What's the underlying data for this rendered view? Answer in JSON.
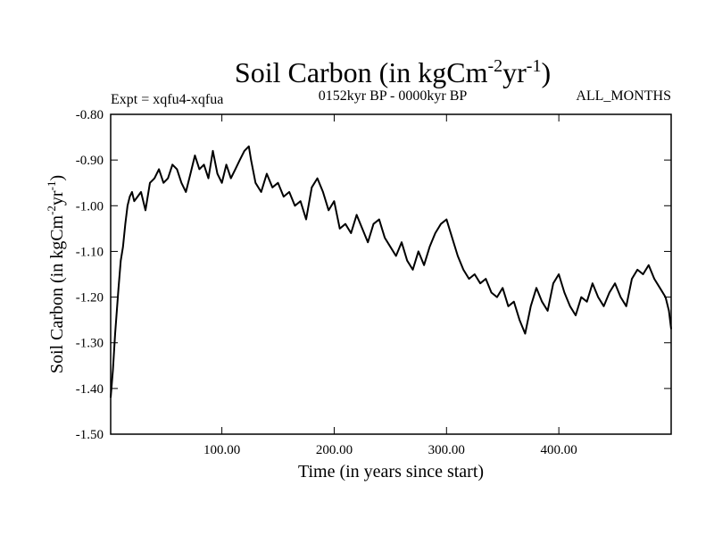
{
  "chart_data": {
    "type": "line",
    "title": {
      "main": "Soil Carbon (in kgCm",
      "sup1": "-2",
      "mid": "yr",
      "sup2": "-1",
      "end": ")"
    },
    "experiment": "Expt = xqfu4-xqfua",
    "period": "0152kyr BP - 0000kyr BP",
    "months": "ALL_MONTHS",
    "xlabel": "Time (in years since start)",
    "ylabel": {
      "main": "Soil Carbon (in kgCm",
      "sup1": "-2",
      "mid": "yr",
      "sup2": "-1",
      "end": ")"
    },
    "xlim": [
      1,
      500
    ],
    "ylim": [
      -1.5,
      -0.8
    ],
    "x_ticks": [
      100,
      200,
      300,
      400
    ],
    "x_tick_labels": [
      "100.00",
      "200.00",
      "300.00",
      "400.00"
    ],
    "y_ticks": [
      -0.8,
      -0.9,
      -1.0,
      -1.1,
      -1.2,
      -1.3,
      -1.4,
      -1.5
    ],
    "y_tick_labels": [
      "-0.80",
      "-0.90",
      "-1.00",
      "-1.10",
      "-1.20",
      "-1.30",
      "-1.40",
      "-1.50"
    ],
    "series": [
      {
        "name": "Soil Carbon",
        "color": "#000000",
        "x": [
          1,
          3,
          5,
          8,
          10,
          12,
          14,
          16,
          18,
          20,
          22,
          25,
          28,
          32,
          36,
          40,
          44,
          48,
          52,
          56,
          60,
          64,
          68,
          72,
          76,
          80,
          84,
          88,
          92,
          96,
          100,
          104,
          108,
          112,
          116,
          120,
          124,
          126,
          130,
          135,
          140,
          145,
          150,
          155,
          160,
          165,
          170,
          175,
          180,
          185,
          190,
          195,
          200,
          205,
          210,
          215,
          220,
          225,
          230,
          235,
          240,
          245,
          250,
          255,
          260,
          265,
          270,
          275,
          280,
          285,
          290,
          295,
          300,
          305,
          310,
          315,
          320,
          325,
          330,
          335,
          340,
          345,
          350,
          355,
          360,
          365,
          370,
          375,
          380,
          385,
          390,
          395,
          400,
          405,
          410,
          415,
          420,
          425,
          430,
          435,
          440,
          445,
          450,
          455,
          460,
          465,
          470,
          475,
          480,
          485,
          490,
          495,
          498,
          500
        ],
        "values": [
          -1.42,
          -1.36,
          -1.28,
          -1.18,
          -1.12,
          -1.09,
          -1.04,
          -1.0,
          -0.98,
          -0.97,
          -0.99,
          -0.98,
          -0.97,
          -1.01,
          -0.95,
          -0.94,
          -0.92,
          -0.95,
          -0.94,
          -0.91,
          -0.92,
          -0.95,
          -0.97,
          -0.93,
          -0.89,
          -0.92,
          -0.91,
          -0.94,
          -0.88,
          -0.93,
          -0.95,
          -0.91,
          -0.94,
          -0.92,
          -0.9,
          -0.88,
          -0.87,
          -0.9,
          -0.95,
          -0.97,
          -0.93,
          -0.96,
          -0.95,
          -0.98,
          -0.97,
          -1.0,
          -0.99,
          -1.03,
          -0.96,
          -0.94,
          -0.97,
          -1.01,
          -0.99,
          -1.05,
          -1.04,
          -1.06,
          -1.02,
          -1.05,
          -1.08,
          -1.04,
          -1.03,
          -1.07,
          -1.09,
          -1.11,
          -1.08,
          -1.12,
          -1.14,
          -1.1,
          -1.13,
          -1.09,
          -1.06,
          -1.04,
          -1.03,
          -1.07,
          -1.11,
          -1.14,
          -1.16,
          -1.15,
          -1.17,
          -1.16,
          -1.19,
          -1.2,
          -1.18,
          -1.22,
          -1.21,
          -1.25,
          -1.28,
          -1.22,
          -1.18,
          -1.21,
          -1.23,
          -1.17,
          -1.15,
          -1.19,
          -1.22,
          -1.24,
          -1.2,
          -1.21,
          -1.17,
          -1.2,
          -1.22,
          -1.19,
          -1.17,
          -1.2,
          -1.22,
          -1.16,
          -1.14,
          -1.15,
          -1.13,
          -1.16,
          -1.18,
          -1.2,
          -1.23,
          -1.27
        ]
      }
    ],
    "grid": false
  }
}
